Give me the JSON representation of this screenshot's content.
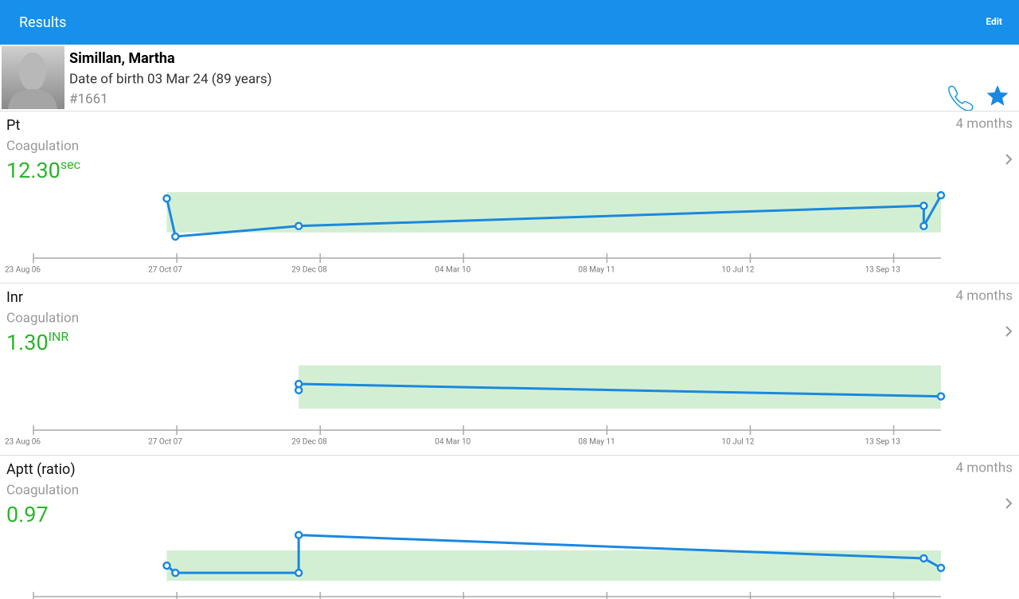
{
  "header": {
    "title": "Results",
    "action": "Edit"
  },
  "patient": {
    "name": "Simillan, Martha",
    "dob": "Date of birth 03 Mar 24 (89 years)",
    "id": "#1661"
  },
  "results": [
    {
      "name": "Pt",
      "category": "Coagulation",
      "value": "12.30",
      "unit": "sec",
      "period": "4 months",
      "chart_data": {
        "type": "line",
        "x": [
          0.93,
          0.99,
          1.85,
          6.21,
          6.21,
          6.33
        ],
        "values": [
          12.1,
          9.75,
          10.4,
          11.65,
          10.4,
          12.3
        ],
        "range": [
          10,
          12.5
        ],
        "xlim": [
          0,
          6.33
        ],
        "ylim": [
          9.6,
          12.8
        ],
        "color": "#1a88e0",
        "xticks": [
          {
            "value": 0,
            "label": "23 Aug 06"
          },
          {
            "value": 1,
            "label": "27 Oct 07"
          },
          {
            "value": 2,
            "label": "29 Dec 08"
          },
          {
            "value": 3,
            "label": "04 Mar 10"
          },
          {
            "value": 4,
            "label": "08 May 11"
          },
          {
            "value": 5,
            "label": "10 Jul 12"
          },
          {
            "value": 6,
            "label": "13 Sep 13"
          }
        ]
      }
    },
    {
      "name": "Inr",
      "category": "Coagulation",
      "value": "1.30",
      "unit": "INR",
      "period": "4 months",
      "chart_data": {
        "type": "line",
        "x": [
          1.85,
          1.85,
          6.33
        ],
        "values": [
          1.4,
          1.5,
          1.3
        ],
        "range": [
          1.1,
          1.8
        ],
        "xlim": [
          0,
          6.33
        ],
        "ylim": [
          1.05,
          1.9
        ],
        "color": "#1a88e0",
        "xticks": [
          {
            "value": 0,
            "label": "23 Aug 06"
          },
          {
            "value": 1,
            "label": "27 Oct 07"
          },
          {
            "value": 2,
            "label": "29 Dec 08"
          },
          {
            "value": 3,
            "label": "04 Mar 10"
          },
          {
            "value": 4,
            "label": "08 May 11"
          },
          {
            "value": 5,
            "label": "10 Jul 12"
          },
          {
            "value": 6,
            "label": "13 Sep 13"
          }
        ]
      }
    },
    {
      "name": "Aptt (ratio)",
      "category": "Coagulation",
      "value": "0.97",
      "period": "4 months",
      "chart_data": {
        "type": "line",
        "x": [
          0.93,
          0.99,
          1.85,
          1.85,
          6.21,
          6.33
        ],
        "values": [
          1.0,
          0.905,
          0.905,
          1.4,
          1.095,
          0.97
        ],
        "range": [
          0.8,
          1.2
        ],
        "xlim": [
          0,
          6.33
        ],
        "ylim": [
          0.74,
          1.47
        ],
        "color": "#1a88e0",
        "xticks": [
          0,
          1,
          2,
          3,
          4,
          5,
          6
        ]
      }
    }
  ]
}
